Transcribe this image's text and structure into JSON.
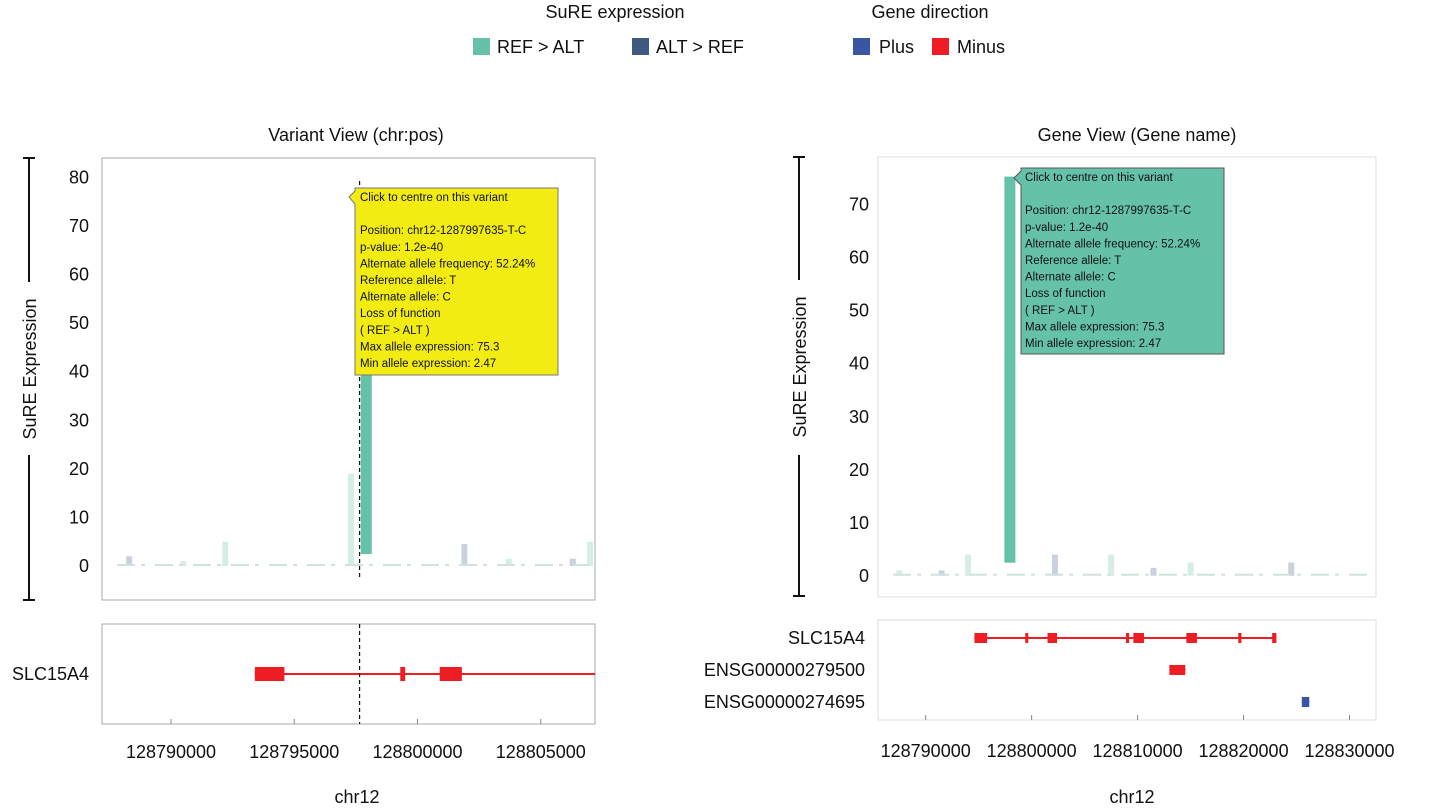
{
  "legend": {
    "sure_title": "SuRE expression",
    "sure_items": [
      {
        "label": "REF > ALT",
        "color": "#65c1a8"
      },
      {
        "label": "ALT > REF",
        "color": "#3f5a80"
      }
    ],
    "gene_title": "Gene direction",
    "gene_items": [
      {
        "label": "Plus",
        "color": "#3a55a4"
      },
      {
        "label": "Minus",
        "color": "#ee1d24"
      }
    ]
  },
  "colors": {
    "ref_gt_alt": "#65c1a8",
    "alt_gt_ref": "#3f5a80",
    "tooltip_variant": "#f2ec13",
    "tooltip_gene": "#65c1a8",
    "minus": "#ee1d24",
    "plus": "#3a55a4"
  },
  "tooltip": {
    "lines": [
      "Click to centre on this variant",
      "",
      "Position: chr12-1287997635-T-C",
      "p-value: 1.2e-40",
      "Alternate allele frequency: 52.24%",
      "Reference allele: T",
      "Alternate allele: C",
      "Loss of function",
      "( REF > ALT )",
      "Max allele expression: 75.3",
      "Min allele expression: 2.47"
    ]
  },
  "chart_data": [
    {
      "type": "bar",
      "title": "Variant View (chr:pos)",
      "xlabel": "chr12",
      "ylabel": "SuRE Expression",
      "xlim": [
        128787200,
        128807200
      ],
      "ylim": [
        -7,
        84
      ],
      "yticks": [
        0,
        10,
        20,
        30,
        40,
        50,
        60,
        70,
        80
      ],
      "xticks": [
        128790000,
        128795000,
        128800000,
        128805000
      ],
      "highlight": {
        "x": 128797900,
        "max": 75.3,
        "min": 2.47,
        "direction": "REF > ALT"
      },
      "variant_line_x": 128797650,
      "background_bars": [
        {
          "x": 128788300,
          "y": 2,
          "dir": "alt"
        },
        {
          "x": 128790500,
          "y": 1,
          "dir": "ref"
        },
        {
          "x": 128792200,
          "y": 5,
          "dir": "ref"
        },
        {
          "x": 128797300,
          "y": 19,
          "dir": "ref"
        },
        {
          "x": 128801900,
          "y": 4.5,
          "dir": "alt"
        },
        {
          "x": 128803700,
          "y": 1.5,
          "dir": "ref"
        },
        {
          "x": 128806300,
          "y": 1.5,
          "dir": "alt"
        },
        {
          "x": 128807000,
          "y": 5,
          "dir": "ref"
        }
      ],
      "genes": [
        {
          "name": "SLC15A4",
          "strand": "minus",
          "start": 128793400,
          "end": 128807200,
          "exons": [
            [
              128793400,
              128794600
            ],
            [
              128799300,
              128799500
            ],
            [
              128800900,
              128801800
            ]
          ]
        }
      ]
    },
    {
      "type": "bar",
      "title": "Gene View (Gene name)",
      "xlabel": "chr12",
      "ylabel": "SuRE Expression",
      "xlim": [
        128785500,
        128832500
      ],
      "ylim": [
        -4,
        79
      ],
      "yticks": [
        0,
        10,
        20,
        30,
        40,
        50,
        60,
        70
      ],
      "xticks": [
        128790000,
        128800000,
        128810000,
        128820000,
        128830000
      ],
      "highlight": {
        "x": 128797900,
        "max": 75.3,
        "min": 2.47,
        "direction": "REF > ALT"
      },
      "background_bars": [
        {
          "x": 128787500,
          "y": 1,
          "dir": "ref"
        },
        {
          "x": 128791500,
          "y": 1,
          "dir": "alt"
        },
        {
          "x": 128794000,
          "y": 4,
          "dir": "ref"
        },
        {
          "x": 128802200,
          "y": 4,
          "dir": "alt"
        },
        {
          "x": 128807500,
          "y": 4,
          "dir": "ref"
        },
        {
          "x": 128811500,
          "y": 1.5,
          "dir": "alt"
        },
        {
          "x": 128815000,
          "y": 2.5,
          "dir": "ref"
        },
        {
          "x": 128824500,
          "y": 2.5,
          "dir": "alt"
        }
      ],
      "genes": [
        {
          "name": "SLC15A4",
          "strand": "minus",
          "start": 128794600,
          "end": 128823100,
          "exons": [
            [
              128794600,
              128795800
            ],
            [
              128799400,
              128799600
            ],
            [
              128801500,
              128802400
            ],
            [
              128808900,
              128809200
            ],
            [
              128809600,
              128810600
            ],
            [
              128814600,
              128815600
            ],
            [
              128819500,
              128819800
            ],
            [
              128822700,
              128823100
            ]
          ]
        },
        {
          "name": "ENSG00000279500",
          "strand": "minus",
          "start": 128813000,
          "end": 128814500,
          "exons": [
            [
              128813000,
              128814500
            ]
          ]
        },
        {
          "name": "ENSG00000274695",
          "strand": "plus",
          "start": 128825500,
          "end": 128826200,
          "exons": [
            [
              128825500,
              128826200
            ]
          ]
        }
      ]
    }
  ]
}
